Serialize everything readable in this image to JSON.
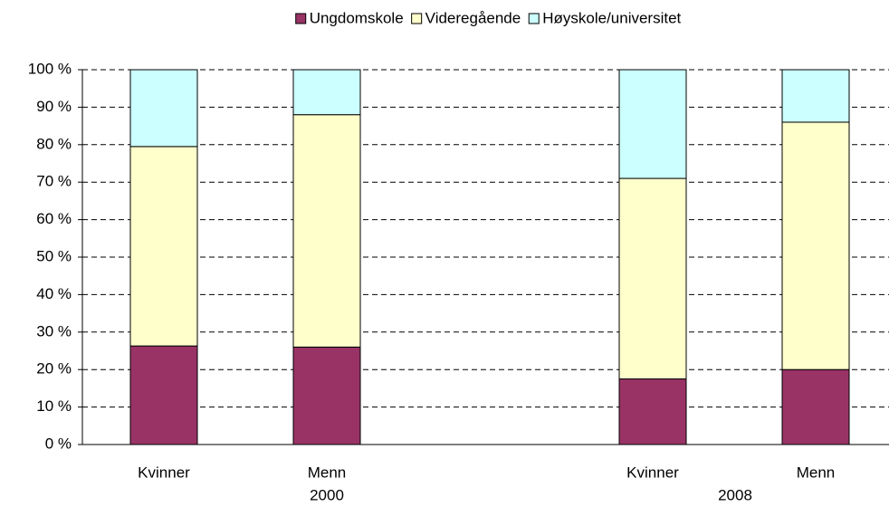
{
  "chart_data": {
    "type": "stacked_bar",
    "categories": [
      "Kvinner",
      "Menn",
      null,
      "Kvinner",
      "Menn"
    ],
    "group_labels": [
      "2000",
      "2008"
    ],
    "series": [
      {
        "name": "Ungdomskole",
        "color": "#993366",
        "values": [
          26.3,
          26,
          null,
          17.5,
          20
        ]
      },
      {
        "name": "Videregående",
        "color": "#ffffcc",
        "values": [
          53.2,
          62,
          null,
          53.5,
          66
        ]
      },
      {
        "name": "Høyskole/universitet",
        "color": "#ccffff",
        "values": [
          20.5,
          12,
          null,
          29,
          14
        ]
      }
    ],
    "ylim": [
      0,
      100
    ],
    "yticks": [
      {
        "value": 0,
        "label": "0 %"
      },
      {
        "value": 10,
        "label": "10 %"
      },
      {
        "value": 20,
        "label": "20 %"
      },
      {
        "value": 30,
        "label": "30 %"
      },
      {
        "value": 40,
        "label": "40 %"
      },
      {
        "value": 50,
        "label": "50 %"
      },
      {
        "value": 60,
        "label": "60 %"
      },
      {
        "value": 70,
        "label": "70 %"
      },
      {
        "value": 80,
        "label": "80 %"
      },
      {
        "value": 90,
        "label": "90 %"
      },
      {
        "value": 100,
        "label": "100 %"
      }
    ],
    "grid": true,
    "legend": "top"
  }
}
